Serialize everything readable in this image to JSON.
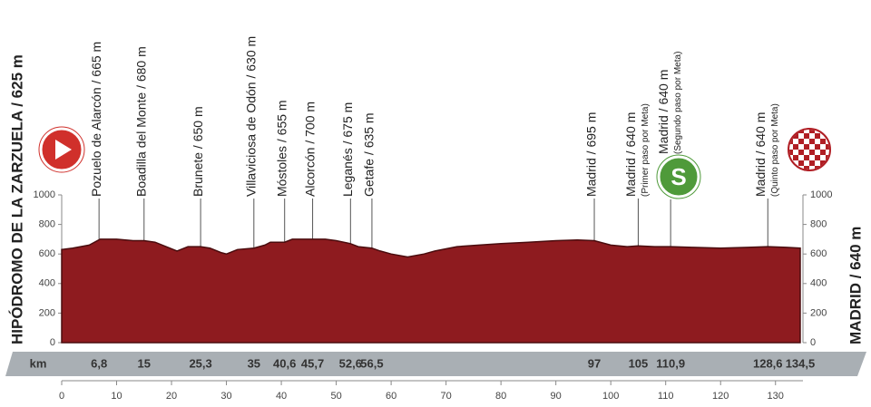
{
  "chart_data": {
    "type": "area",
    "start_label": "HIPÓDROMO DE LA ZARZUELA / 625 m",
    "finish_label": "MADRID / 640 m",
    "sprint_symbol": "S",
    "km_title": "km",
    "color": "#8e1b1f",
    "x": [
      0,
      2,
      5,
      7,
      10,
      13,
      15,
      17,
      19,
      21,
      23,
      25.3,
      27,
      29,
      30,
      32,
      35,
      37,
      38,
      40.6,
      42,
      45.7,
      48,
      50,
      52.6,
      54,
      56.5,
      58,
      60,
      63,
      66,
      68,
      72,
      76,
      80,
      85,
      90,
      94,
      97,
      100,
      103,
      105,
      108,
      110.9,
      115,
      120,
      125,
      128.6,
      132,
      134.5
    ],
    "values": [
      630,
      640,
      660,
      700,
      700,
      690,
      690,
      680,
      650,
      620,
      650,
      650,
      640,
      610,
      600,
      630,
      640,
      660,
      680,
      680,
      700,
      700,
      700,
      690,
      670,
      650,
      640,
      620,
      600,
      580,
      600,
      620,
      650,
      660,
      670,
      680,
      690,
      695,
      690,
      660,
      650,
      655,
      650,
      650,
      645,
      640,
      645,
      650,
      645,
      640
    ],
    "xlim": [
      0,
      135
    ],
    "ylim": [
      0,
      1000
    ],
    "xticks": [
      0,
      10,
      20,
      30,
      40,
      50,
      60,
      70,
      80,
      90,
      100,
      110,
      120,
      130
    ],
    "yticks": [
      0,
      200,
      400,
      600,
      800,
      1000
    ],
    "km_markers": [
      {
        "value": 6.8,
        "label": "6,8"
      },
      15,
      {
        "value": 25.3,
        "label": "25,3"
      },
      35,
      {
        "value": 40.6,
        "label": "40,6"
      },
      {
        "value": 45.7,
        "label": "45,7"
      },
      {
        "value": 52.6,
        "label": "52,6"
      },
      {
        "value": 56.5,
        "label": "56,5"
      },
      97,
      105,
      {
        "value": 110.9,
        "label": "110,9"
      },
      {
        "value": 128.6,
        "label": "128,6"
      },
      {
        "value": 134.5,
        "label": "134,5"
      }
    ],
    "waypoints": [
      {
        "name": "Pozuelo de Alarcón / 665 m"
      },
      {
        "name": "Boadilla del Monte / 680 m"
      },
      {
        "name": "Brunete / 650 m"
      },
      {
        "name": "Villaviciosa de Odón / 630 m"
      },
      {
        "name": "Móstoles / 655 m"
      },
      {
        "name": "Alcorcón / 700 m"
      },
      {
        "name": "Leganés / 675 m"
      },
      {
        "name": "Getafe / 635 m"
      },
      {
        "name": "Madrid / 695 m"
      },
      {
        "name": "Madrid / 640 m",
        "note": "(Primer paso por Meta)"
      },
      {
        "name": "Madrid / 640 m",
        "note": "(Segundo paso por Meta)"
      },
      {
        "name": "Madrid / 640 m",
        "note": "(Quinto paso por Meta)"
      }
    ]
  }
}
